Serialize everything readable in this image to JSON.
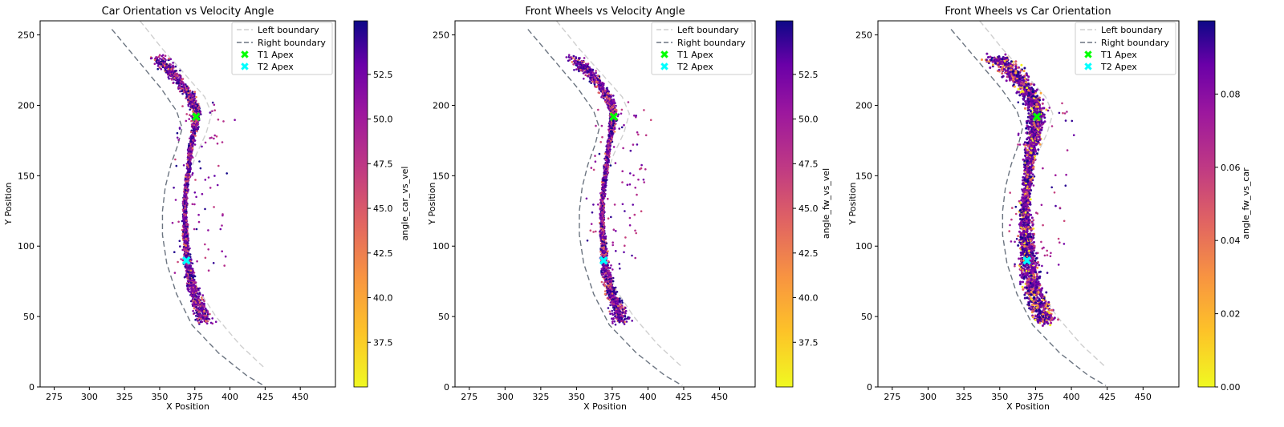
{
  "chart_data": [
    {
      "type": "scatter",
      "title": "Car Orientation vs Velocity Angle",
      "xlabel": "X Position",
      "ylabel": "Y Position",
      "xlim": [
        265,
        475
      ],
      "ylim": [
        0,
        260
      ],
      "xticks": [
        "275",
        "300",
        "325",
        "350",
        "375",
        "400",
        "425",
        "450"
      ],
      "yticks": [
        "0",
        "50",
        "100",
        "150",
        "200",
        "250"
      ],
      "colorbar": {
        "label": "angle_car_vs_vel",
        "range": [
          35.0,
          55.5
        ],
        "ticks": [
          "37.5",
          "40.0",
          "42.5",
          "45.0",
          "47.5",
          "50.0",
          "52.5"
        ],
        "colormap": "plasma_r"
      },
      "legend": {
        "position": "top-right",
        "entries": [
          "Left boundary",
          "Right boundary",
          "T1 Apex",
          "T2 Apex"
        ]
      },
      "apexes": {
        "T1": [
          376,
          192
        ],
        "T2": [
          369,
          90
        ]
      }
    },
    {
      "type": "scatter",
      "title": "Front Wheels vs Velocity Angle",
      "xlabel": "X Position",
      "ylabel": "Y Position",
      "xlim": [
        265,
        475
      ],
      "ylim": [
        0,
        260
      ],
      "xticks": [
        "275",
        "300",
        "325",
        "350",
        "375",
        "400",
        "425",
        "450"
      ],
      "yticks": [
        "0",
        "50",
        "100",
        "150",
        "200",
        "250"
      ],
      "colorbar": {
        "label": "angle_fw_vs_vel",
        "range": [
          35.0,
          55.5
        ],
        "ticks": [
          "37.5",
          "40.0",
          "42.5",
          "45.0",
          "47.5",
          "50.0",
          "52.5"
        ],
        "colormap": "plasma_r"
      },
      "legend": {
        "position": "top-right",
        "entries": [
          "Left boundary",
          "Right boundary",
          "T1 Apex",
          "T2 Apex"
        ]
      },
      "apexes": {
        "T1": [
          376,
          192
        ],
        "T2": [
          369,
          90
        ]
      }
    },
    {
      "type": "scatter",
      "title": "Front Wheels vs Car Orientation",
      "xlabel": "X Position",
      "ylabel": "Y Position",
      "xlim": [
        265,
        475
      ],
      "ylim": [
        0,
        260
      ],
      "xticks": [
        "275",
        "300",
        "325",
        "350",
        "375",
        "400",
        "425",
        "450"
      ],
      "yticks": [
        "0",
        "50",
        "100",
        "150",
        "200",
        "250"
      ],
      "colorbar": {
        "label": "angle_fw_vs_car",
        "range": [
          0.0,
          0.1
        ],
        "ticks": [
          "0.00",
          "0.02",
          "0.04",
          "0.06",
          "0.08"
        ],
        "colormap": "plasma_r"
      },
      "legend": {
        "position": "top-right",
        "entries": [
          "Left boundary",
          "Right boundary",
          "T1 Apex",
          "T2 Apex"
        ]
      },
      "apexes": {
        "T1": [
          376,
          192
        ],
        "T2": [
          369,
          90
        ]
      }
    }
  ],
  "track": {
    "left_boundary": [
      [
        336,
        260
      ],
      [
        352,
        240
      ],
      [
        368,
        222
      ],
      [
        382,
        206
      ],
      [
        387,
        194
      ],
      [
        383,
        180
      ],
      [
        376,
        165
      ],
      [
        370,
        148
      ],
      [
        367,
        130
      ],
      [
        367,
        110
      ],
      [
        370,
        90
      ],
      [
        377,
        70
      ],
      [
        390,
        50
      ],
      [
        407,
        30
      ],
      [
        424,
        14
      ]
    ],
    "right_boundary": [
      [
        316,
        254
      ],
      [
        336,
        230
      ],
      [
        351,
        212
      ],
      [
        362,
        196
      ],
      [
        366,
        184
      ],
      [
        363,
        172
      ],
      [
        358,
        158
      ],
      [
        354,
        142
      ],
      [
        352,
        125
      ],
      [
        352,
        108
      ],
      [
        355,
        88
      ],
      [
        362,
        66
      ],
      [
        373,
        44
      ],
      [
        392,
        24
      ],
      [
        412,
        8
      ],
      [
        424,
        1
      ]
    ],
    "racing_line": [
      [
        348,
        234
      ],
      [
        360,
        222
      ],
      [
        371,
        208
      ],
      [
        376,
        196
      ],
      [
        375,
        184
      ],
      [
        372,
        168
      ],
      [
        370,
        150
      ],
      [
        368,
        132
      ],
      [
        368,
        116
      ],
      [
        369,
        100
      ],
      [
        370,
        88
      ],
      [
        373,
        72
      ],
      [
        378,
        58
      ],
      [
        382,
        46
      ]
    ]
  },
  "colors": {
    "left_boundary": "#cfcfcf",
    "right_boundary": "#6b7480",
    "t1_apex": "#00ff00",
    "t2_apex": "#00ffff"
  }
}
